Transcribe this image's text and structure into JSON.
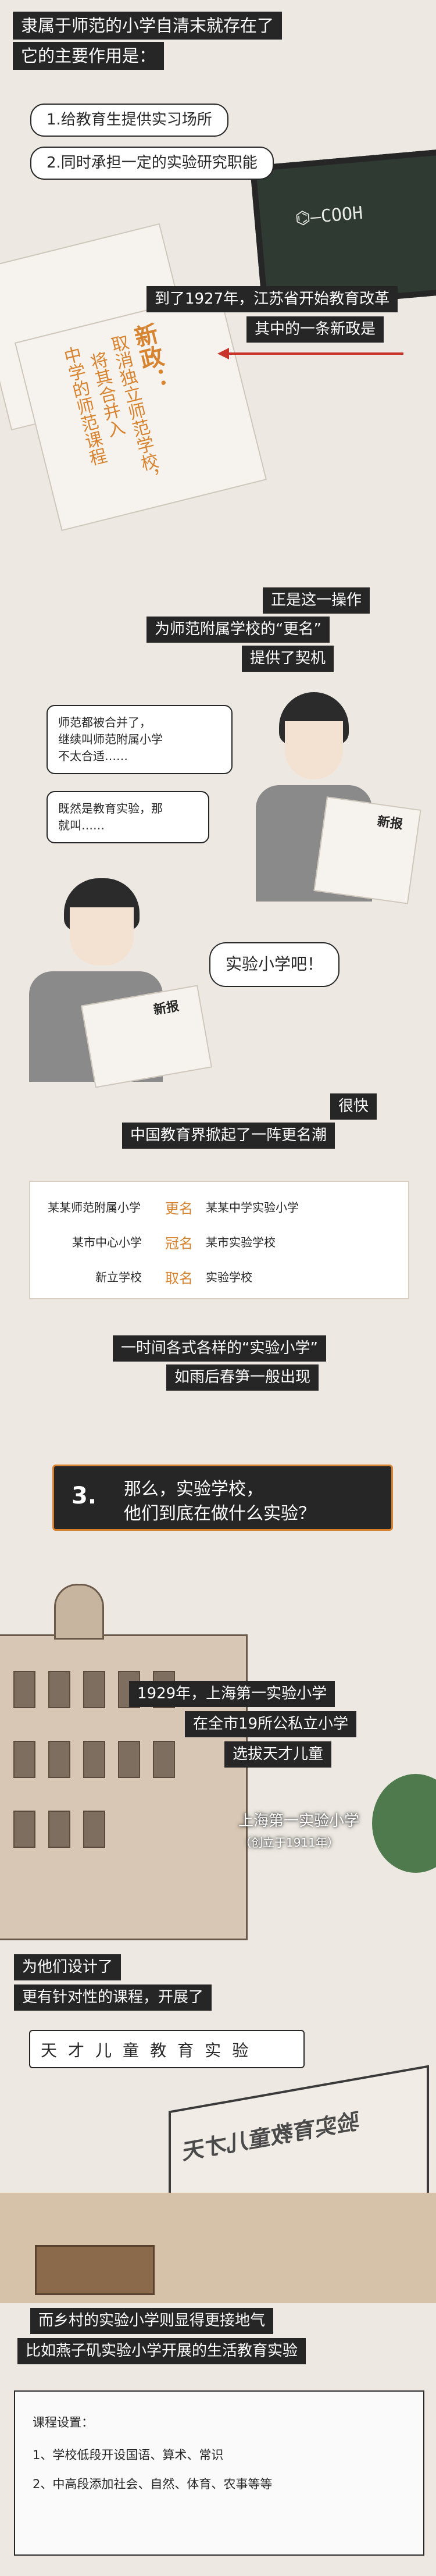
{
  "section1": {
    "caption1": "隶属于师范的小学自清末就存在了",
    "caption2": "它的主要作用是：",
    "point1": "1.给教育生提供实习场所",
    "point2": "2.同时承担一定的实验研究职能"
  },
  "section2": {
    "cap1": "到了1927年，江苏省开始教育改革",
    "cap2": "其中的一条新政是",
    "paper_title": "新政：",
    "paper_col1": "取消独立师范学校，",
    "paper_col2": "将其合并入",
    "paper_col3": "中学的师范课程"
  },
  "section3": {
    "cap1": "正是这一操作",
    "cap2": "为师范附属学校的“更名”",
    "cap3": "提供了契机",
    "bubble1": "师范都被合并了，\n继续叫师范附属小学\n不太合适……",
    "bubble2": "既然是教育实验，那\n就叫……",
    "bubble3": "实验小学吧！",
    "newspaper_label": "新报"
  },
  "section4": {
    "cap1": "很快",
    "cap2": "中国教育界掀起了一阵更名潮",
    "rows": [
      {
        "left": "某某师范附属小学",
        "verb": "更名",
        "right": "某某中学实验小学"
      },
      {
        "left": "某市中心小学",
        "verb": "冠名",
        "right": "某市实验学校"
      },
      {
        "left": "新立学校",
        "verb": "取名",
        "right": "实验学校"
      }
    ],
    "cap3": "一时间各式各样的“实验小学”",
    "cap4": "如雨后春笋一般出现"
  },
  "section5": {
    "number": "3.",
    "question_line1": "那么，实验学校，",
    "question_line2": "他们到底在做什么实验？"
  },
  "section6": {
    "cap1": "1929年，上海第一实验小学",
    "cap2": "在全市19所公私立小学",
    "cap3": "选拔天才儿童",
    "label": "上海第一实验小学",
    "label_sub": "（创立于1911年）"
  },
  "section7": {
    "cap1": "为他们设计了",
    "cap2": "更有针对性的课程，开展了",
    "title_chars": [
      "天",
      "才",
      "儿",
      "童",
      "教",
      "育",
      "实",
      "验"
    ],
    "board_text": "验实育教童儿才天"
  },
  "section8": {
    "cap1": "而乡村的实验小学则显得更接地气",
    "cap2": "比如燕子矶实验小学开展的生活教育实验",
    "list_title": "课程设置：",
    "items": [
      "1、学校低段开设国语、算术、常识",
      "2、中高段添加社会、自然、体育、农事等等"
    ]
  },
  "colors": {
    "accent": "#d7832f",
    "dark": "#262626",
    "background": "#ede9e2"
  }
}
